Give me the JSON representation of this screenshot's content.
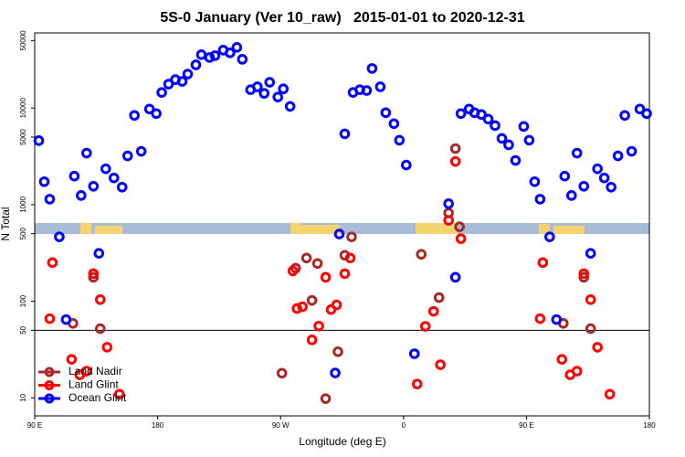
{
  "chart_data": {
    "type": "scatter",
    "title": "5S-0 January (Ver 10_raw)   2015-01-01 to 2020-12-31",
    "x_label": "Longitude (deg E)",
    "y_label": "N Total",
    "log_y": true,
    "legend": "bottomleft",
    "hline": 50,
    "xlim": [
      90,
      540
    ],
    "xticks": [
      {
        "value": 90,
        "label": "90 E"
      },
      {
        "value": 180,
        "label": "180"
      },
      {
        "value": 270,
        "label": "90 W"
      },
      {
        "value": 360,
        "label": "0"
      },
      {
        "value": 450,
        "label": "90 E"
      },
      {
        "value": 540,
        "label": "180"
      }
    ],
    "ylim": [
      6.5,
      60000
    ],
    "yticks": [
      10,
      50,
      100,
      500,
      1000,
      5000,
      10000,
      50000
    ],
    "series": [
      {
        "name": "Land Nadir",
        "color": "#a52a2a",
        "x": [
          118,
          133,
          138,
          271,
          281,
          289,
          293,
          297,
          303,
          312,
          317,
          322,
          373,
          386,
          393,
          398,
          401,
          477,
          492,
          497
        ],
        "values": [
          59,
          177,
          52,
          18,
          220,
          280,
          102,
          246,
          9.8,
          30,
          299,
          464,
          306,
          109,
          820,
          3810,
          590,
          59,
          177,
          52
        ]
      },
      {
        "name": "Land Glint",
        "color": "#ff0000",
        "x": [
          101,
          103,
          117,
          123,
          128,
          133,
          138,
          143,
          152,
          279,
          282,
          286,
          293,
          298,
          303,
          307,
          311,
          317,
          321,
          370,
          376,
          382,
          387,
          393,
          398,
          402,
          460,
          462,
          476,
          482,
          487,
          492,
          497,
          502,
          511
        ],
        "values": [
          66,
          251,
          25,
          17.3,
          18.9,
          193,
          104,
          33.4,
          10.9,
          206,
          84,
          87.7,
          39.8,
          55.3,
          177,
          82,
          91.6,
          193,
          280,
          13.9,
          55,
          78.6,
          22,
          689,
          2800,
          444,
          66,
          251,
          25,
          17.3,
          18.9,
          193,
          104,
          33.4,
          10.9
        ]
      },
      {
        "name": "Ocean Glint",
        "color": "#0000ff",
        "x": [
          93,
          97,
          101,
          108,
          113,
          119,
          124,
          128,
          133,
          137,
          142,
          148,
          154,
          158,
          163,
          168,
          174,
          179,
          183,
          188,
          193,
          198,
          202,
          208,
          212,
          218,
          222,
          228,
          233,
          238,
          242,
          248,
          253,
          258,
          262,
          268,
          272,
          277,
          310,
          313,
          317,
          323,
          328,
          333,
          337,
          343,
          347,
          353,
          357,
          362,
          368,
          393,
          398,
          402,
          408,
          412,
          417,
          422,
          427,
          432,
          437,
          442,
          448,
          452,
          456,
          460,
          467,
          472,
          478,
          483,
          487,
          492,
          497,
          502,
          507,
          512,
          517,
          522,
          527,
          533,
          538
        ],
        "values": [
          4600,
          1730,
          1140,
          464,
          64.6,
          1973,
          1245,
          3415,
          1550,
          313,
          2350,
          1890,
          1517,
          3200,
          8390,
          3566,
          9780,
          8770,
          14500,
          17700,
          19700,
          18900,
          22500,
          28000,
          35700,
          33400,
          34900,
          39800,
          37300,
          42500,
          32000,
          15500,
          16600,
          14200,
          18500,
          13000,
          15800,
          10400,
          18.1,
          496,
          5410,
          14500,
          15500,
          15200,
          25700,
          16600,
          8960,
          6890,
          4645,
          2570,
          28.6,
          1023,
          177,
          8770,
          9780,
          8960,
          8580,
          7690,
          6590,
          4850,
          4160,
          2870,
          6450,
          4645,
          1730,
          1140,
          464,
          64.6,
          1973,
          1245,
          3415,
          1550,
          313,
          2350,
          1890,
          1517,
          3200,
          8390,
          3566,
          9780,
          8770
        ]
      }
    ]
  }
}
